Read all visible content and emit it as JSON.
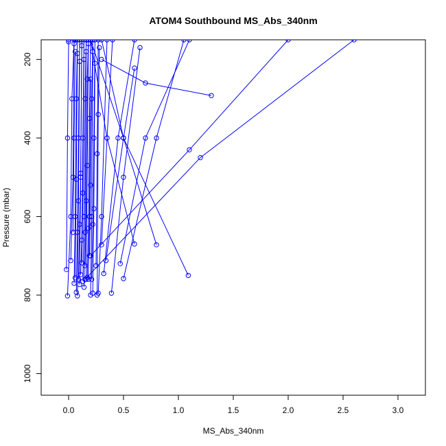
{
  "chart_data": {
    "type": "line",
    "title": "ATOM4 Southbound MS_Abs_340nm",
    "xlabel": "MS_Abs_340nm",
    "ylabel": "Pressure (mbar)",
    "xlim": [
      -0.25,
      3.25
    ],
    "ylim": [
      1055,
      150
    ],
    "y_reversed": true,
    "x_ticks": [
      0.0,
      0.5,
      1.0,
      1.5,
      2.0,
      2.5,
      3.0
    ],
    "x_tick_labels": [
      "0.0",
      "0.5",
      "1.0",
      "1.5",
      "2.0",
      "2.5",
      "3.0"
    ],
    "y_ticks": [
      200,
      400,
      600,
      800,
      1000
    ],
    "y_tick_labels": [
      "200",
      "400",
      "600",
      "800",
      "1000"
    ],
    "grid": false,
    "legend": "none",
    "series_color": "#0000ff",
    "marker": "open-circle",
    "series": [
      {
        "x": [
          -0.02,
          -0.01,
          0.0,
          0.0
        ],
        "y": [
          735,
          400,
          155,
          150
        ]
      },
      {
        "x": [
          -0.01,
          0.02,
          0.03,
          0.05
        ],
        "y": [
          802,
          600,
          300,
          150
        ]
      },
      {
        "x": [
          0.02,
          0.04,
          0.05,
          0.06
        ],
        "y": [
          712,
          500,
          160,
          150
        ]
      },
      {
        "x": [
          0.04,
          0.05,
          0.06
        ],
        "y": [
          640,
          400,
          180
        ]
      },
      {
        "x": [
          0.05,
          0.06,
          0.07,
          0.08
        ],
        "y": [
          770,
          600,
          300,
          150
        ]
      },
      {
        "x": [
          0.06,
          0.07,
          0.08
        ],
        "y": [
          756,
          505,
          185
        ]
      },
      {
        "x": [
          0.07,
          0.08,
          0.09,
          0.1
        ],
        "y": [
          793,
          640,
          400,
          150
        ]
      },
      {
        "x": [
          0.08,
          0.09,
          0.1
        ],
        "y": [
          802,
          560,
          205
        ]
      },
      {
        "x": [
          0.09,
          0.1,
          0.11,
          0.12
        ],
        "y": [
          760,
          620,
          490,
          150
        ]
      },
      {
        "x": [
          0.1,
          0.11,
          0.12
        ],
        "y": [
          773,
          500,
          165
        ]
      },
      {
        "x": [
          0.11,
          0.12,
          0.13,
          0.14
        ],
        "y": [
          748,
          660,
          400,
          150
        ]
      },
      {
        "x": [
          0.12,
          0.13,
          0.14
        ],
        "y": [
          718,
          540,
          200
        ]
      },
      {
        "x": [
          0.13,
          0.14,
          0.15,
          0.16
        ],
        "y": [
          765,
          600,
          300,
          150
        ]
      },
      {
        "x": [
          0.14,
          0.15,
          0.16
        ],
        "y": [
          780,
          640,
          180
        ]
      },
      {
        "x": [
          0.15,
          0.16,
          0.17,
          0.18
        ],
        "y": [
          725,
          560,
          250,
          150
        ]
      },
      {
        "x": [
          0.16,
          0.17,
          0.18
        ],
        "y": [
          760,
          470,
          160
        ]
      },
      {
        "x": [
          0.17,
          0.18,
          0.19,
          0.2
        ],
        "y": [
          755,
          630,
          350,
          150
        ]
      },
      {
        "x": [
          0.18,
          0.19,
          0.2
        ],
        "y": [
          760,
          600,
          250
        ]
      },
      {
        "x": [
          0.19,
          0.2,
          0.21,
          0.22
        ],
        "y": [
          700,
          520,
          300,
          150
        ]
      },
      {
        "x": [
          0.2,
          0.21,
          0.22
        ],
        "y": [
          800,
          600,
          180
        ]
      },
      {
        "x": [
          0.21,
          0.22,
          0.23,
          0.24
        ],
        "y": [
          760,
          620,
          400,
          150
        ]
      },
      {
        "x": [
          0.22,
          0.23,
          0.24
        ],
        "y": [
          795,
          580,
          210
        ]
      },
      {
        "x": [
          0.25,
          0.26,
          0.27
        ],
        "y": [
          725,
          440,
          150
        ]
      },
      {
        "x": [
          0.26,
          0.27,
          0.28
        ],
        "y": [
          800,
          340,
          170
        ]
      },
      {
        "x": [
          0.27,
          0.3,
          0.35
        ],
        "y": [
          795,
          600,
          150
        ]
      },
      {
        "x": [
          0.3,
          0.35,
          0.4
        ],
        "y": [
          672,
          400,
          150
        ]
      },
      {
        "x": [
          0.32,
          0.45,
          0.6
        ],
        "y": [
          745,
          400,
          150
        ]
      },
      {
        "x": [
          0.34,
          0.5,
          0.6
        ],
        "y": [
          712,
          400,
          222
        ]
      },
      {
        "x": [
          0.39,
          0.5,
          0.65
        ],
        "y": [
          795,
          500,
          170
        ]
      },
      {
        "x": [
          0.47,
          0.7,
          1.1
        ],
        "y": [
          720,
          400,
          150
        ]
      },
      {
        "x": [
          0.5,
          0.8,
          1.05
        ],
        "y": [
          758,
          400,
          150
        ]
      },
      {
        "x": [
          0.6,
          0.35,
          0.2
        ],
        "y": [
          670,
          400,
          150
        ]
      },
      {
        "x": [
          0.8,
          0.5,
          0.3
        ],
        "y": [
          672,
          400,
          150
        ]
      },
      {
        "x": [
          1.09,
          0.5,
          0.2
        ],
        "y": [
          750,
          400,
          150
        ]
      },
      {
        "x": [
          1.3,
          0.7,
          0.3
        ],
        "y": [
          292,
          260,
          200
        ]
      },
      {
        "x": [
          0.15,
          1.2,
          2.6
        ],
        "y": [
          760,
          450,
          150
        ]
      },
      {
        "x": [
          0.2,
          1.1,
          2.0
        ],
        "y": [
          700,
          430,
          150
        ]
      }
    ]
  }
}
